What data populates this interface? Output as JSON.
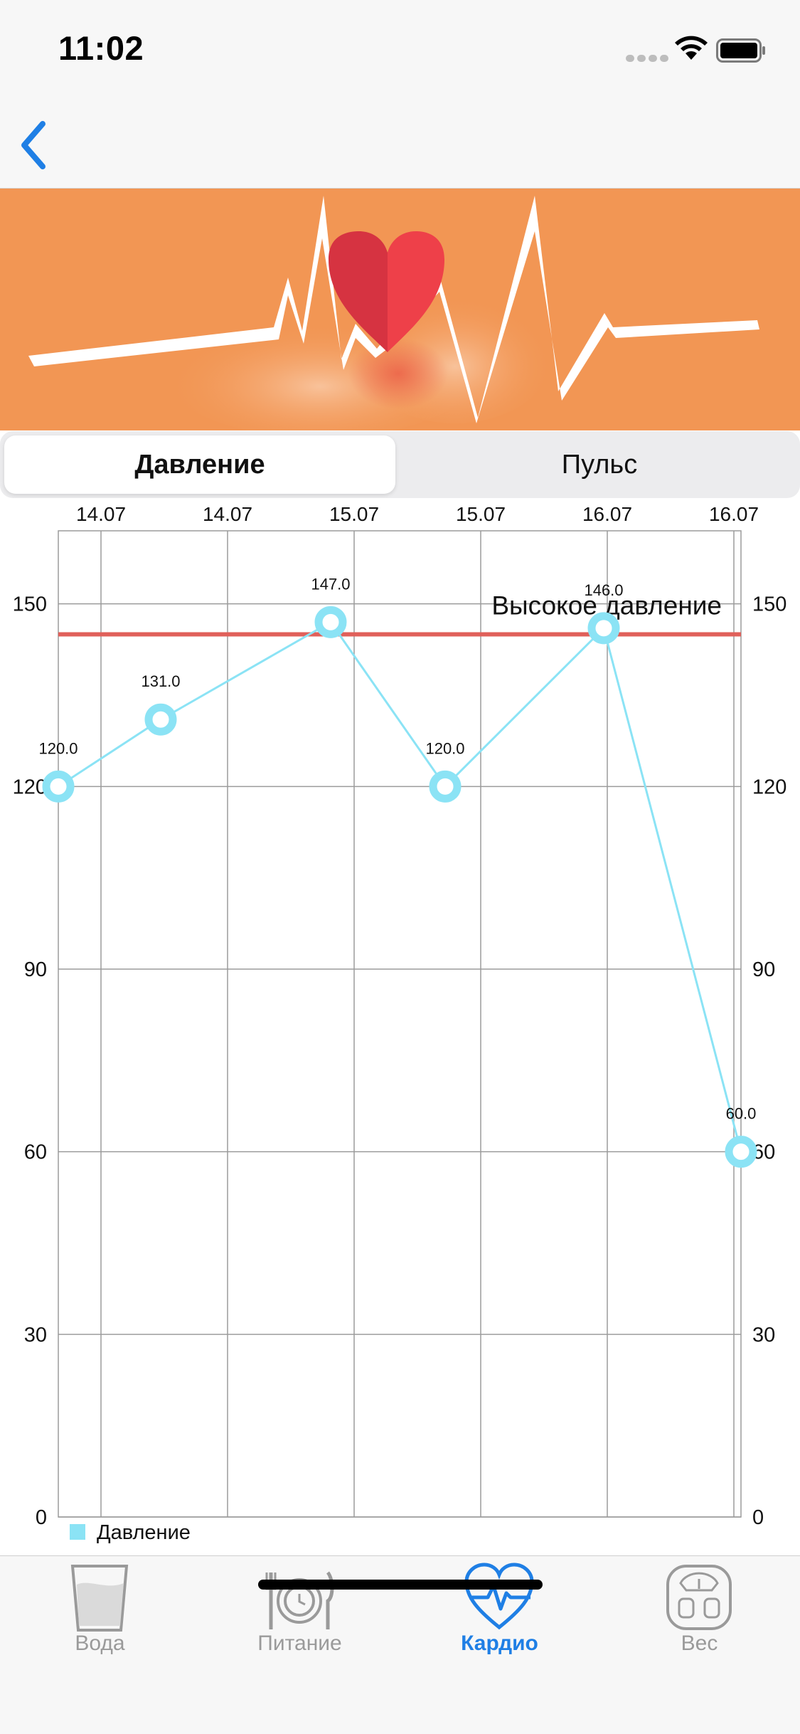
{
  "status_bar": {
    "time": "11:02"
  },
  "segmented": {
    "left": "Давление",
    "right": "Пульс"
  },
  "chart_data": {
    "type": "line",
    "x": [
      "14.07",
      "14.07",
      "15.07",
      "15.07",
      "16.07",
      "16.07"
    ],
    "series": [
      {
        "name": "Давление",
        "values": [
          120.0,
          131.0,
          147.0,
          120.0,
          146.0,
          60.0
        ],
        "color": "#8be3f5"
      }
    ],
    "point_labels": [
      "120.0",
      "131.0",
      "147.0",
      "120.0",
      "146.0",
      "60.0"
    ],
    "y_ticks": [
      "0",
      "30",
      "60",
      "90",
      "120",
      "150"
    ],
    "ylim": [
      0,
      162
    ],
    "limit_line": {
      "label": "Высокое давление",
      "value": 145,
      "color": "#e0605a"
    },
    "legend": {
      "label": "Давление",
      "position": "bottom-left"
    },
    "grid": true
  },
  "tabs": [
    {
      "label": "Вода",
      "icon": "water-glass-icon"
    },
    {
      "label": "Питание",
      "icon": "plate-cutlery-icon"
    },
    {
      "label": "Кардио",
      "icon": "heart-pulse-icon"
    },
    {
      "label": "Вес",
      "icon": "scale-icon"
    }
  ],
  "colors": {
    "accent": "#1f7fe5",
    "banner": "#f29654",
    "inactive": "#9a9a9a"
  }
}
